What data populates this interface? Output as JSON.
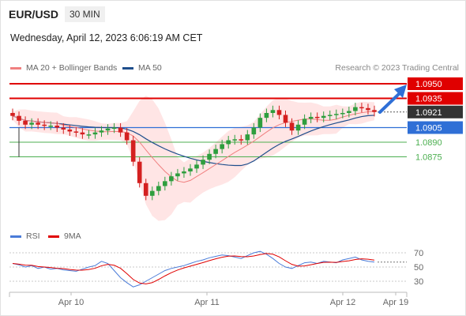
{
  "header": {
    "pair": "EUR/USD",
    "timeframe": "30 MIN",
    "datetime": "Wednesday, April 12, 2023 6:06:19 AM CET"
  },
  "legend": {
    "ma20": "MA 20 + Bollinger Bands",
    "ma50": "MA 50",
    "rsi": "RSI",
    "ma9": "9MA"
  },
  "credit": "Research © 2023 Trading Central",
  "colors": {
    "resistance": "#e00000",
    "support": "#2f6fd6",
    "target": "#4caf50",
    "ma20": "#f08080",
    "ma50": "#1f4e8c",
    "band": "#ffdcdc",
    "up": "#2e9e3e",
    "down": "#d42020",
    "rsi": "#4a7bd8",
    "rsi_ma": "#e00000"
  },
  "chart_data": {
    "type": "line",
    "price_axis_range": [
      1.0805,
      1.0965
    ],
    "x_ticks": [
      "Apr 10",
      "Apr 11",
      "Apr 12",
      "Apr 19"
    ],
    "levels": [
      {
        "value": 1.095,
        "label": "1.0950",
        "kind": "resistance"
      },
      {
        "value": 1.0935,
        "label": "1.0935",
        "kind": "resistance"
      },
      {
        "value": 1.0921,
        "label": "1.0921",
        "kind": "last"
      },
      {
        "value": 1.0905,
        "label": "1.0905",
        "kind": "support"
      },
      {
        "value": 1.089,
        "label": "1.0890",
        "kind": "target"
      },
      {
        "value": 1.0875,
        "label": "1.0875",
        "kind": "target"
      }
    ],
    "close_path": [
      1.0917,
      1.0912,
      1.0908,
      1.091,
      1.0908,
      1.0907,
      1.0907,
      1.0905,
      1.0903,
      1.0901,
      1.09,
      1.0898,
      1.0898,
      1.09,
      1.0902,
      1.0904,
      1.0905,
      1.09,
      1.0892,
      1.087,
      1.0848,
      1.0835,
      1.084,
      1.0845,
      1.085,
      1.0855,
      1.0858,
      1.086,
      1.0863,
      1.0867,
      1.0872,
      1.0878,
      1.0883,
      1.0888,
      1.0892,
      1.0893,
      1.0892,
      1.0898,
      1.0905,
      1.0915,
      1.092,
      1.0923,
      1.0918,
      1.091,
      1.0902,
      1.0908,
      1.0914,
      1.0916,
      1.0915,
      1.0917,
      1.0918,
      1.0919,
      1.092,
      1.0922,
      1.0926,
      1.0925,
      1.0923,
      1.0921
    ],
    "rsi": {
      "ticks": [
        70,
        50,
        30
      ],
      "last": 57,
      "values": [
        55,
        53,
        50,
        52,
        48,
        50,
        47,
        48,
        46,
        45,
        44,
        47,
        50,
        52,
        58,
        55,
        45,
        35,
        28,
        22,
        25,
        30,
        35,
        40,
        45,
        48,
        50,
        52,
        55,
        58,
        60,
        63,
        65,
        67,
        66,
        64,
        62,
        66,
        70,
        72,
        68,
        62,
        55,
        50,
        48,
        52,
        56,
        57,
        55,
        58,
        57,
        56,
        60,
        62,
        64,
        60,
        58,
        57
      ]
    }
  }
}
